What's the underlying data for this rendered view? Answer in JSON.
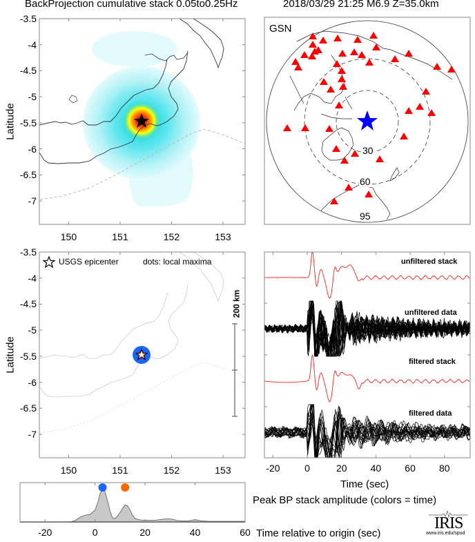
{
  "header": {
    "title_left": "BackProjection cumulative stack 0.05to0.25Hz",
    "title_right": "2018/03/29 21:25  M6.9  Z=35.0km"
  },
  "colors": {
    "station": "#ff0000",
    "epicenter_star_global": "#0000ff",
    "stack_trace": "#ff3333",
    "data_trace": "#000000",
    "maxima_early": "#1a66ff",
    "maxima_late": "#ff6600",
    "area_fill": "#c8c8c8"
  },
  "chart_data": [
    {
      "type": "heatmap",
      "name": "backprojection-cumulative-stack-map",
      "title": "BackProjection cumulative stack 0.05to0.25Hz",
      "ylabel": "Latitude",
      "xlabel": "",
      "xlim": [
        149.43,
        153.43
      ],
      "ylim": [
        -7.45,
        -3.5
      ],
      "xticks": [
        "150",
        "151",
        "152",
        "153"
      ],
      "xtick_values": [
        150,
        151,
        152,
        153
      ],
      "yticks": [
        "-3.5",
        "-4",
        "-4.5",
        "-5",
        "-5.5",
        "-6",
        "-6.5",
        "-7"
      ],
      "ytick_values": [
        -3.5,
        -4,
        -4.5,
        -5,
        -5.5,
        -6,
        -6.5,
        -7
      ],
      "peak": {
        "lon": 151.46,
        "lat": -5.47
      },
      "epicenter": {
        "lon": 151.46,
        "lat": -5.47
      },
      "colormap": [
        "#e8fbff",
        "#ccf6fb",
        "#99eef7",
        "#33dde8",
        "#00d0e0",
        "#80e080",
        "#ffff00",
        "#ff9900",
        "#ff3300",
        "#aa0000"
      ]
    },
    {
      "type": "scatter",
      "name": "gsn-station-map",
      "label": "GSN",
      "ring_labels": [
        "30",
        "60",
        "95"
      ],
      "ring_degrees": [
        30,
        60,
        95
      ],
      "stations_count": 42
    },
    {
      "type": "scatter",
      "name": "local-maxima-map",
      "ylabel": "Latitude",
      "legend_star": "USGS epicenter",
      "legend_dots": "dots: local maxima",
      "scale_label": "200 km",
      "xlim": [
        149.43,
        153.43
      ],
      "ylim": [
        -7.45,
        -3.5
      ],
      "xticks": [
        "150",
        "151",
        "152",
        "153"
      ],
      "yticks": [
        "-3.5",
        "-4",
        "-4.5",
        "-5",
        "-5.5",
        "-6",
        "-6.5",
        "-7"
      ],
      "points": [
        {
          "lon": 151.46,
          "lat": -5.47,
          "time": 3,
          "color": "#1a66ff"
        }
      ]
    },
    {
      "type": "line",
      "name": "waveforms",
      "xlabel": "Time (sec)",
      "xlim": [
        -25,
        95
      ],
      "xticks": [
        "-20",
        "0",
        "20",
        "40",
        "60",
        "80"
      ],
      "xtick_values": [
        -20,
        0,
        20,
        40,
        60,
        80
      ],
      "series": [
        {
          "name": "unfiltered stack",
          "color": "#ff3333"
        },
        {
          "name": "unfiltered data",
          "color": "#000000"
        },
        {
          "name": "filtered stack",
          "color": "#ff3333"
        },
        {
          "name": "filtered data",
          "color": "#000000"
        }
      ]
    },
    {
      "type": "area",
      "name": "peak-bp-stack-amplitude",
      "title": "Peak BP stack amplitude (colors = time)",
      "xlabel": "Time relative to origin (sec)",
      "xlim": [
        -30,
        60
      ],
      "ylim": [
        0,
        1.05
      ],
      "xticks": [
        "-20",
        "0",
        "20",
        "40",
        "60"
      ],
      "xtick_values": [
        -20,
        0,
        20,
        40,
        60
      ],
      "x": [
        -30,
        -10,
        -8,
        -6,
        -4,
        -2,
        0,
        1,
        2,
        3,
        4,
        5,
        6,
        7,
        8,
        9,
        10,
        11,
        12,
        13,
        14,
        15,
        16,
        18,
        20,
        24,
        27,
        29,
        31,
        33,
        36,
        38,
        40,
        42,
        45,
        50,
        55,
        60
      ],
      "values": [
        0.0,
        0.0,
        0.04,
        0.14,
        0.2,
        0.22,
        0.35,
        0.55,
        0.82,
        0.97,
        0.88,
        0.62,
        0.32,
        0.12,
        0.1,
        0.18,
        0.28,
        0.4,
        0.5,
        0.47,
        0.35,
        0.2,
        0.1,
        0.06,
        0.05,
        0.05,
        0.08,
        0.09,
        0.08,
        0.04,
        0.03,
        0.04,
        0.07,
        0.04,
        0.02,
        0.02,
        0.02,
        0.02
      ],
      "maxima": [
        {
          "time": 3,
          "color": "#1a66ff"
        },
        {
          "time": 12,
          "color": "#ff6600"
        }
      ]
    }
  ],
  "logo": {
    "text": "IRIS",
    "url_text": "www.iris.edu/spud"
  }
}
